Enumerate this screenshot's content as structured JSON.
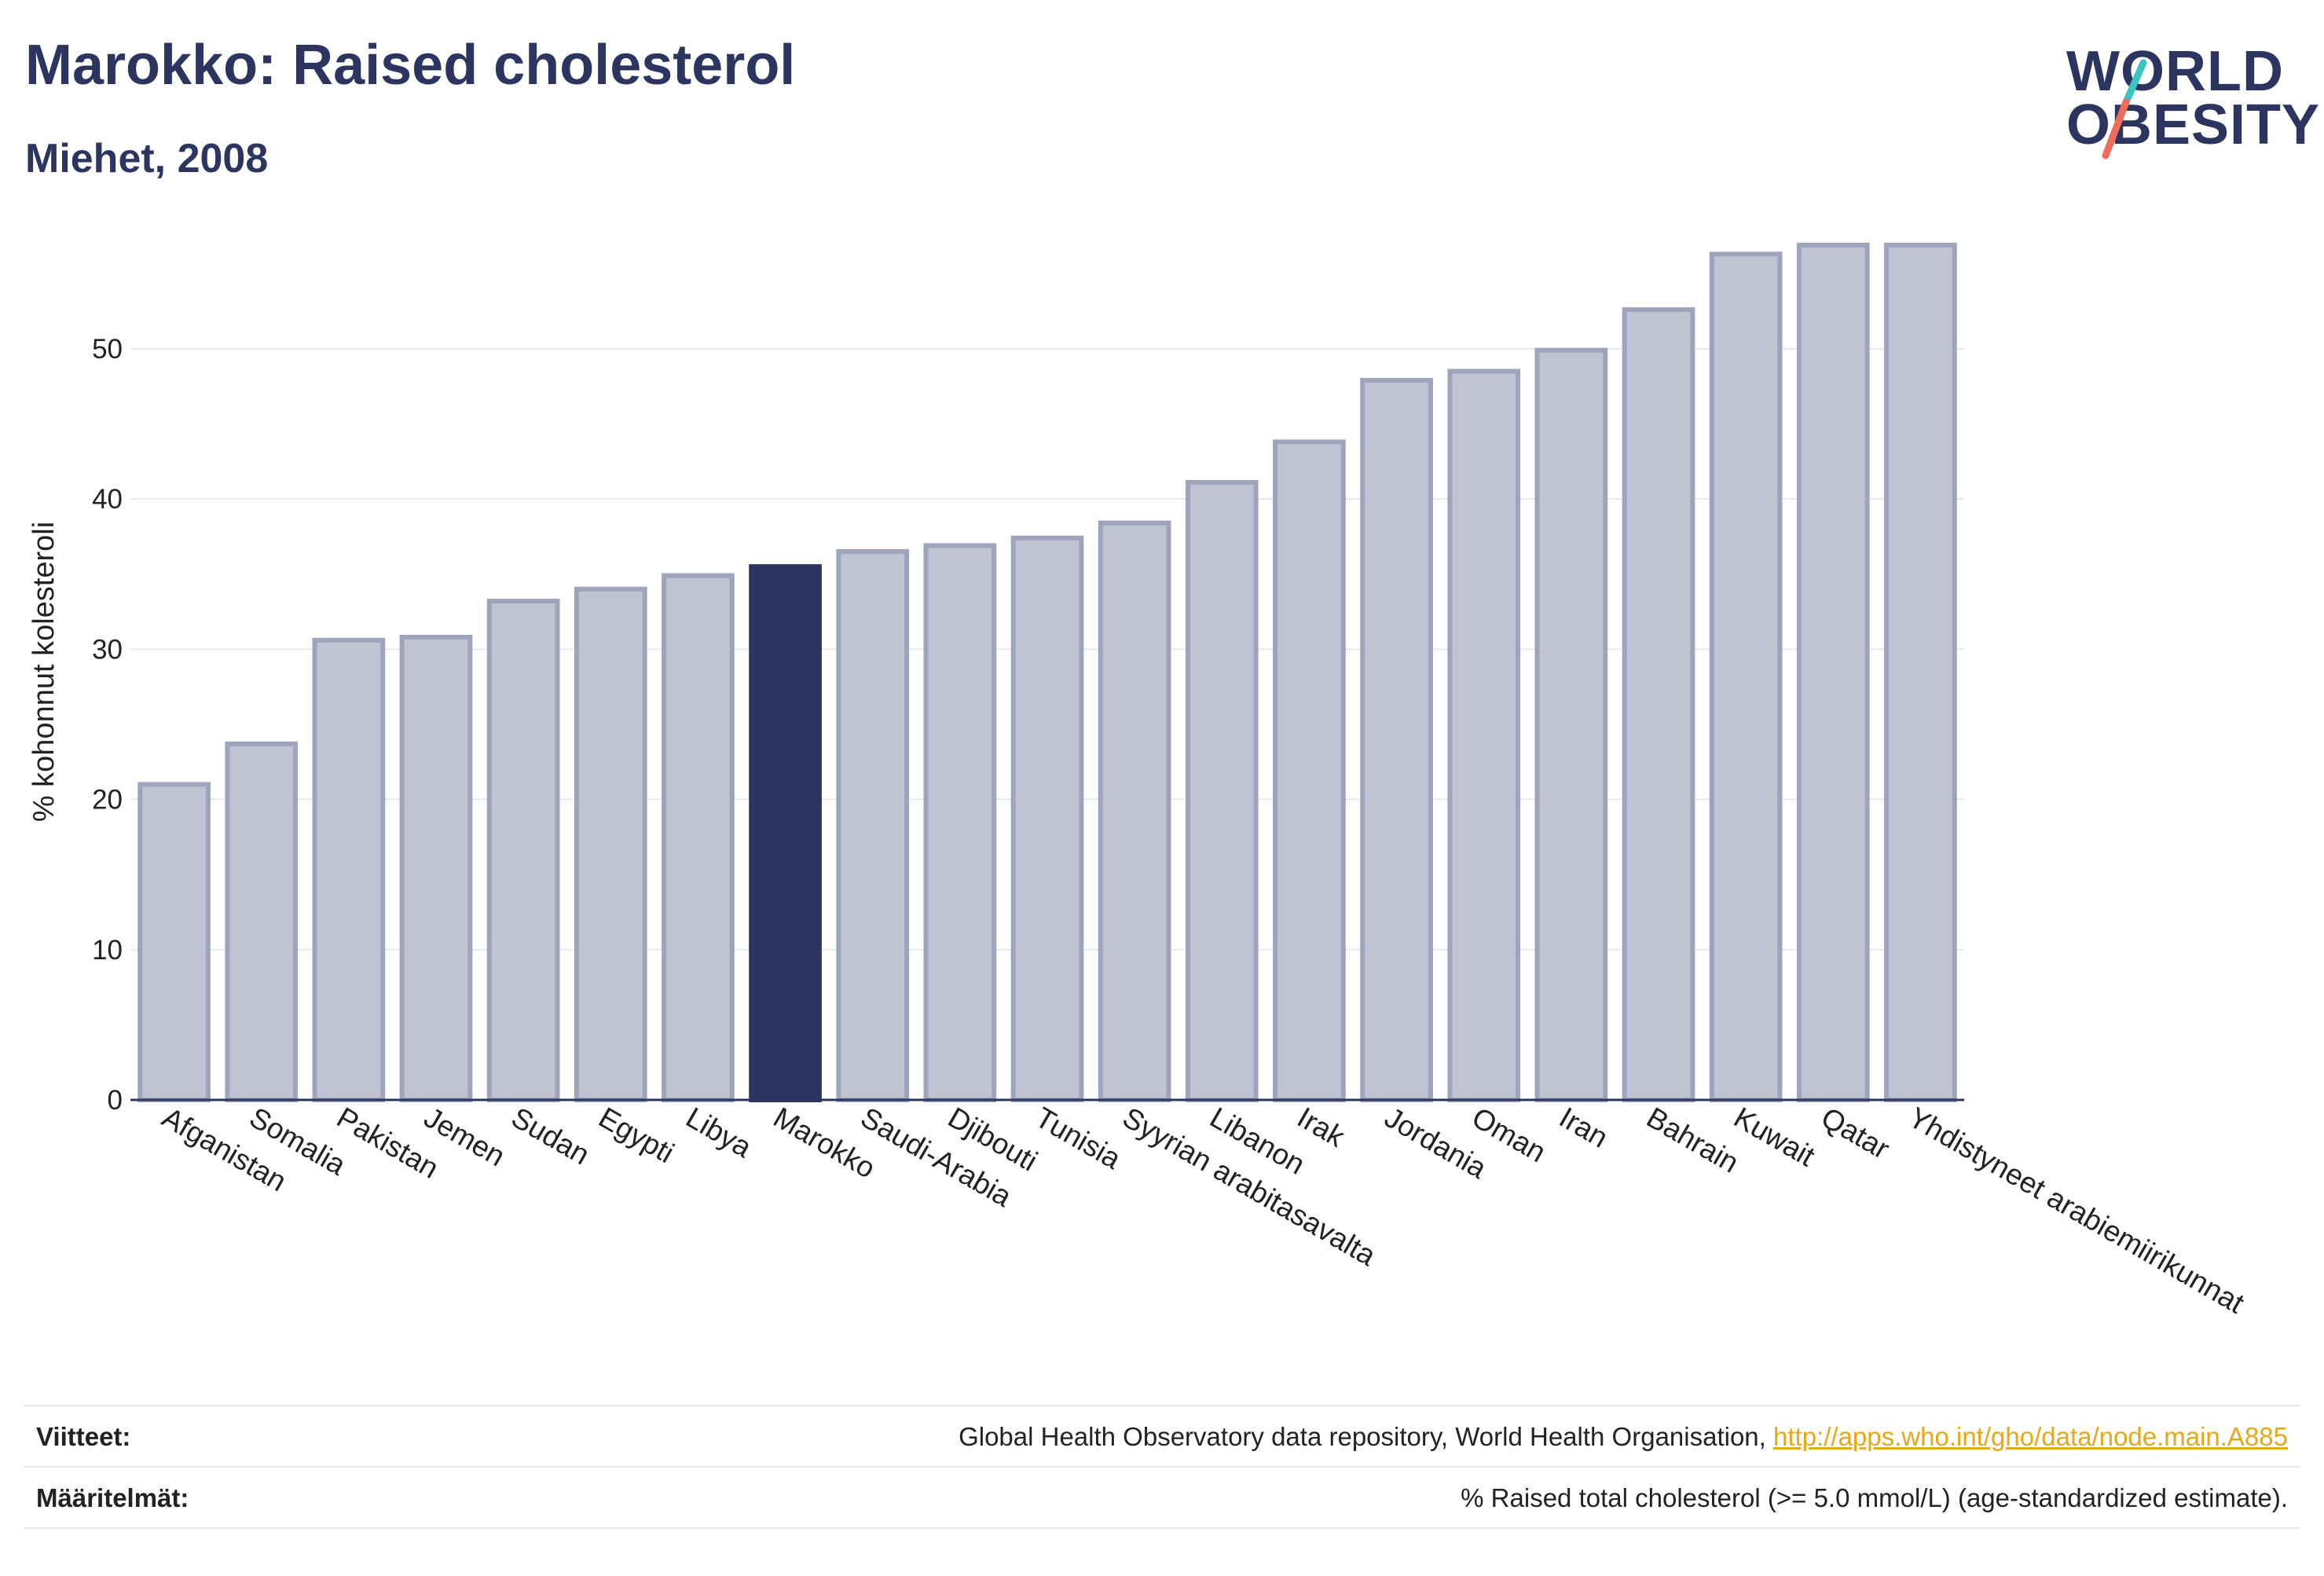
{
  "header": {
    "title": "Marokko: Raised cholesterol",
    "subtitle": "Miehet, 2008"
  },
  "logo": {
    "line1": "WORLD",
    "line2": "OBESITY",
    "slash_colors": [
      "#3cc4c4",
      "#ef6b5b"
    ]
  },
  "chart_data": {
    "type": "bar",
    "ylabel": "% kohonnut kolesteroli",
    "ylim": [
      0,
      57
    ],
    "yticks": [
      0,
      10,
      20,
      30,
      40,
      50
    ],
    "highlight": "Marokko",
    "colors": {
      "bar": "#c0c4d2",
      "bar_edge": "#9ea4bb",
      "highlight": "#2b3560",
      "grid": "#e6e8f0",
      "axis": "#2b3560"
    },
    "categories": [
      "Afganistan",
      "Somalia",
      "Pakistan",
      "Jemen",
      "Sudan",
      "Egypti",
      "Libya",
      "Marokko",
      "Saudi-Arabia",
      "Djibouti",
      "Tunisia",
      "Syyrian arabitasavalta",
      "Libanon",
      "Irak",
      "Jordania",
      "Oman",
      "Iran",
      "Bahrain",
      "Kuwait",
      "Qatar",
      "Yhdistyneet arabiemiirikunnat"
    ],
    "values": [
      21.0,
      23.7,
      30.6,
      30.8,
      33.2,
      34.0,
      34.9,
      35.5,
      36.5,
      36.9,
      37.4,
      38.4,
      41.1,
      43.8,
      47.9,
      48.5,
      49.9,
      52.6,
      56.3,
      56.9,
      56.9
    ]
  },
  "footer": {
    "references_label": "Viitteet:",
    "references_text": "Global Health Observatory data repository, World Health Organisation, ",
    "references_link": "http://apps.who.int/gho/data/node.main.A885",
    "definitions_label": "Määritelmät:",
    "definitions_text": "% Raised total cholesterol (>= 5.0 mmol/L) (age-standardized estimate)."
  }
}
